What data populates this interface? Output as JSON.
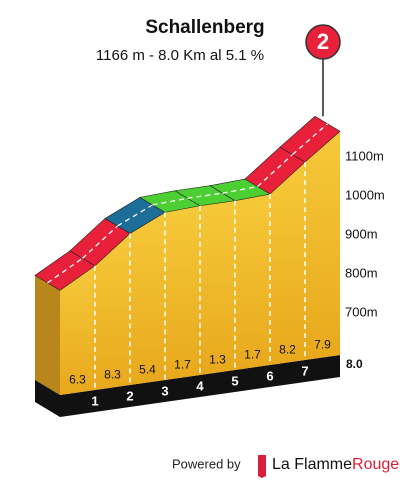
{
  "chart_data": {
    "type": "climb-profile",
    "title": "Schallenberg",
    "subtitle": "1166 m - 8.0 Km al 5.1 %",
    "badge": "2",
    "x": [
      0,
      1,
      2,
      3,
      4,
      5,
      6,
      7,
      8
    ],
    "elevation": [
      758,
      821,
      904,
      958,
      975,
      988,
      1005,
      1087,
      1166
    ],
    "gradients": [
      6.3,
      8.3,
      5.4,
      1.7,
      1.3,
      1.7,
      8.2,
      7.9
    ],
    "segment_colors": [
      "#e8203a",
      "#e8203a",
      "#1c6d98",
      "#4ccf33",
      "#4ccf33",
      "#4ccf33",
      "#e8203a",
      "#e8203a"
    ],
    "xlim": [
      0,
      8
    ],
    "xticks": [
      1,
      2,
      3,
      4,
      5,
      6,
      7,
      {
        "value": 8,
        "label": "8.0"
      }
    ],
    "ylim": [
      500,
      1200
    ],
    "yticks": [
      {
        "value": 700,
        "label": "700m"
      },
      {
        "value": 800,
        "label": "800m"
      },
      {
        "value": 900,
        "label": "900m"
      },
      {
        "value": 1000,
        "label": "1000m"
      },
      {
        "value": 1100,
        "label": "1100m"
      }
    ],
    "footer": {
      "powered": "Powered by",
      "brand": [
        "La Flamme",
        "Rouge"
      ]
    }
  }
}
